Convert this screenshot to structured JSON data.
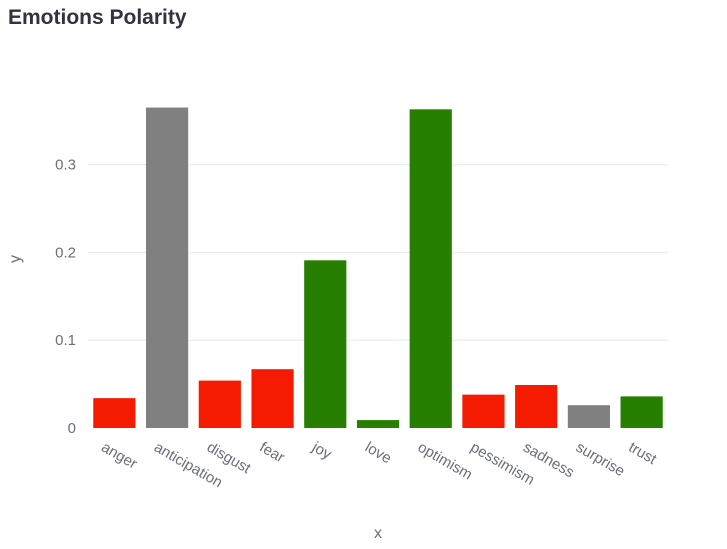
{
  "page": {
    "title": "Emotions Polarity"
  },
  "chart_data": {
    "type": "bar",
    "title": "Emotions Polarity",
    "xlabel": "x",
    "ylabel": "y",
    "categories": [
      "anger",
      "anticipation",
      "disgust",
      "fear",
      "joy",
      "love",
      "optimism",
      "pessimism",
      "sadness",
      "surprise",
      "trust"
    ],
    "values": [
      0.034,
      0.365,
      0.054,
      0.067,
      0.191,
      0.009,
      0.363,
      0.038,
      0.049,
      0.026,
      0.036
    ],
    "colors": [
      "#f51b00",
      "#808080",
      "#f51b00",
      "#f51b00",
      "#277f00",
      "#277f00",
      "#277f00",
      "#f51b00",
      "#f51b00",
      "#808080",
      "#277f00"
    ],
    "yticks": [
      0,
      0.1,
      0.2,
      0.3
    ],
    "ytick_labels": [
      "0",
      "0.1",
      "0.2",
      "0.3"
    ],
    "ylim": [
      0,
      0.385
    ],
    "grid": true,
    "legend": false
  }
}
